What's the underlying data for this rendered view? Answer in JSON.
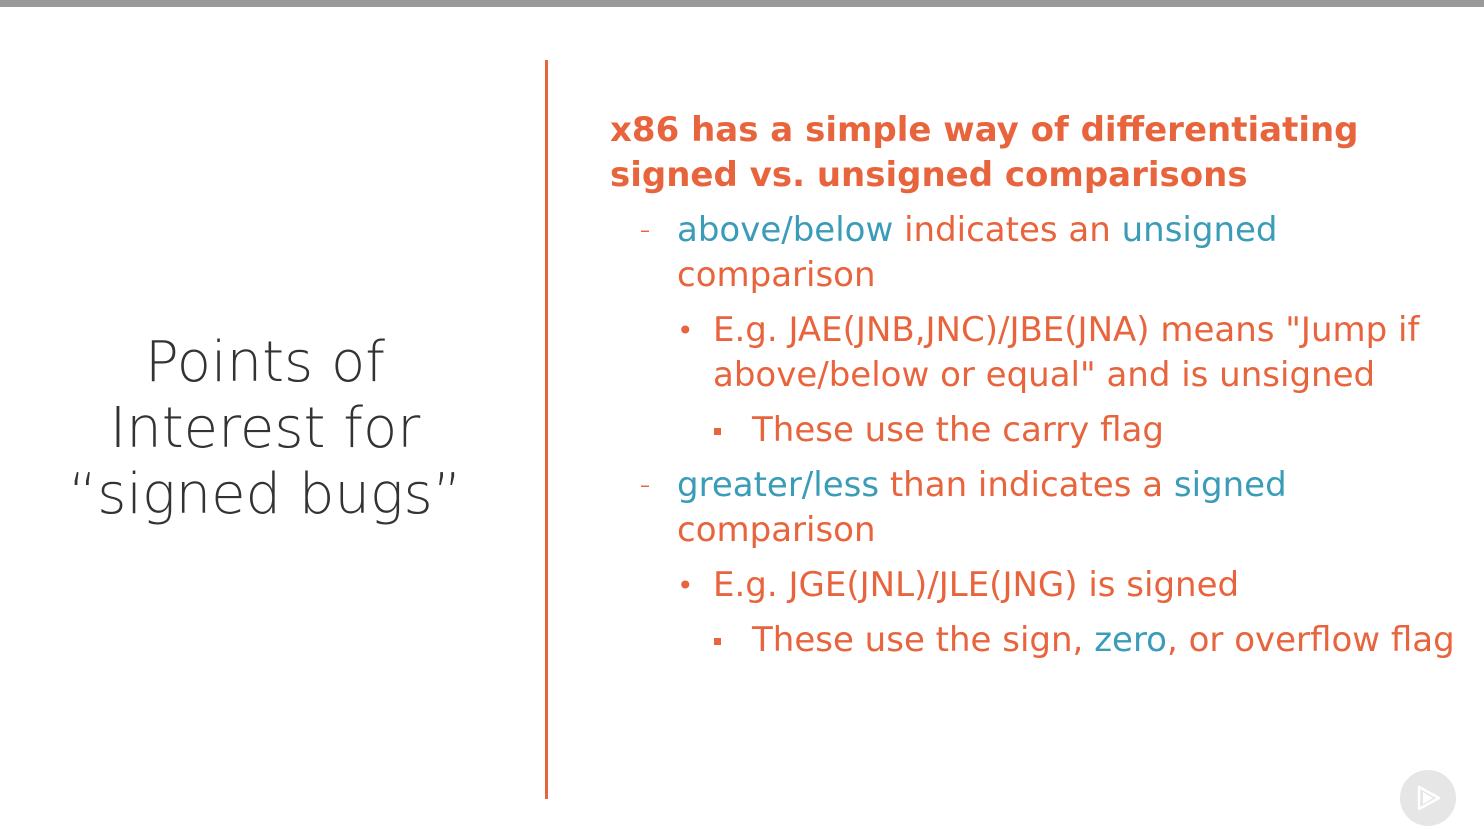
{
  "colors": {
    "accent": "#e8643c",
    "keyword": "#3a9cb8",
    "title_text": "#333333",
    "top_bar": "#999999"
  },
  "left_title": {
    "line1": "Points of",
    "line2": "Interest for",
    "line3": "“signed bugs”"
  },
  "heading": "x86 has a simple way of differentiating signed vs. unsigned comparisons",
  "bullets": {
    "b1": {
      "marker": "–",
      "kw1": "above/below",
      "t1": " indicates an ",
      "kw2": "unsigned",
      "t2": " comparison"
    },
    "b1_sub": {
      "marker": "•",
      "text": "E.g. JAE(JNB,JNC)/JBE(JNA) means \"Jump if above/below or equal\" and is unsigned"
    },
    "b1_subsub": {
      "text": "These use the carry flag"
    },
    "b2": {
      "marker": "–",
      "kw1": "greater/less",
      "t1": " than indicates a ",
      "kw2": "signed",
      "t2": " comparison"
    },
    "b2_sub": {
      "marker": "•",
      "text": "E.g. JGE(JNL)/JLE(JNG) is signed"
    },
    "b2_subsub": {
      "t1": "These use the sign, ",
      "kw": "zero",
      "t2": ", or overflow flag"
    }
  },
  "play_button": {
    "icon": "play-icon"
  }
}
